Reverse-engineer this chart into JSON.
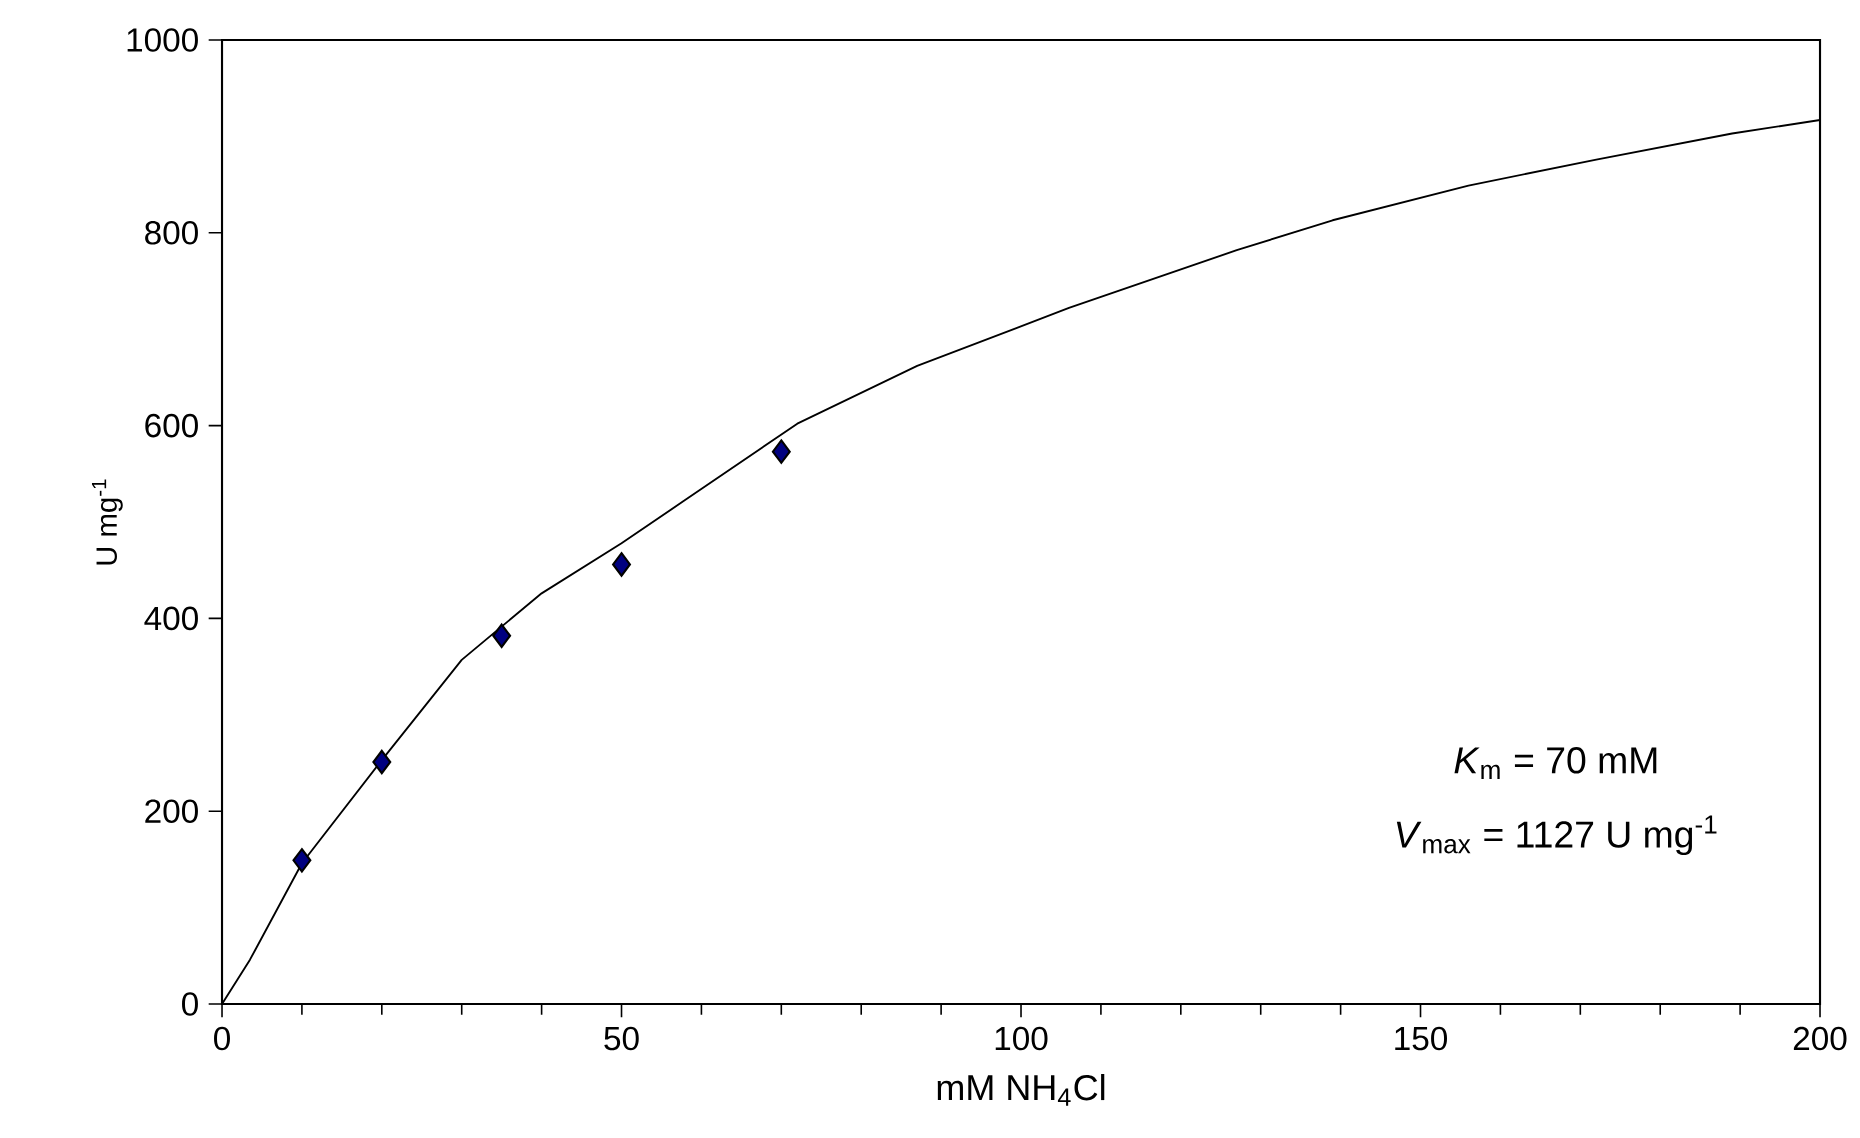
{
  "chart_data": {
    "type": "scatter",
    "xlabel": "mM NH$_{4}$Cl",
    "ylabel": "U mg$^{-1}$",
    "xlim": [
      0,
      200
    ],
    "ylim": [
      0,
      1000
    ],
    "xticks": [
      0,
      50,
      100,
      150,
      200
    ],
    "yticks": [
      0,
      200,
      400,
      600,
      800,
      1000
    ],
    "series": [
      {
        "color": "#000080",
        "marker": "diamond",
        "x": [
          10,
          20,
          35,
          50,
          70
        ],
        "values": [
          149,
          251,
          382,
          456,
          573
        ]
      },
      {
        "type": "line",
        "color": "#000000",
        "marker": "none",
        "line_style": "solid",
        "x": [
          0,
          3.5,
          10,
          20,
          30,
          40,
          50,
          58,
          72,
          87,
          106,
          127,
          139,
          156,
          172,
          189,
          200
        ],
        "values": [
          0,
          46,
          146,
          253,
          357,
          426,
          478,
          523,
          602,
          662,
          722,
          782,
          813,
          849,
          876,
          903,
          917
        ]
      }
    ],
    "annotations": [
      "*K*$_{m}$ = 70 mM",
      "*V*$_{max}$ = 1127 U mg$^{-1}$"
    ]
  }
}
